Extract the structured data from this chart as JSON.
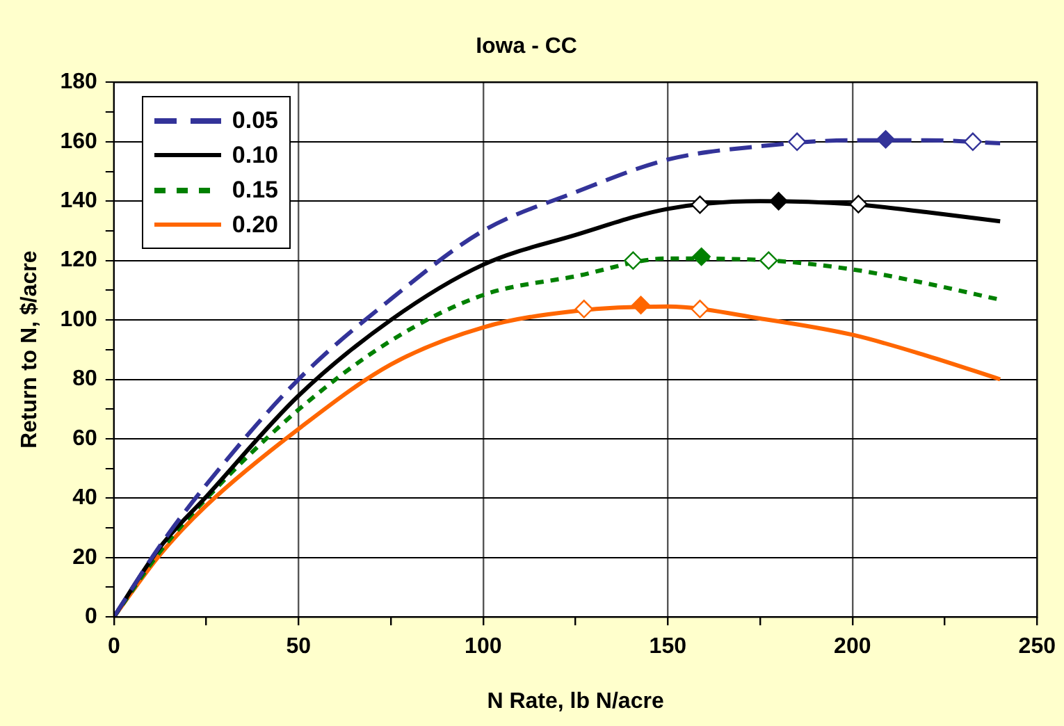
{
  "chart_data": {
    "type": "line",
    "title": "Iowa - CC",
    "xlabel": "N Rate, lb N/acre",
    "ylabel": "Return to N, $/acre",
    "xlim": [
      0,
      250
    ],
    "xticks": [
      0,
      {
        "value": 25,
        "label": null
      },
      50,
      {
        "value": 75,
        "label": null
      },
      100,
      {
        "value": 125,
        "label": null
      },
      150,
      {
        "value": 175,
        "label": null
      },
      200,
      {
        "value": 225,
        "label": null
      },
      250
    ],
    "ylim": [
      0,
      180
    ],
    "yticks": [
      0,
      {
        "value": 10,
        "label": null
      },
      20,
      {
        "value": 30,
        "label": null
      },
      40,
      {
        "value": 50,
        "label": null
      },
      60,
      {
        "value": 70,
        "label": null
      },
      80,
      {
        "value": 90,
        "label": null
      },
      100,
      {
        "value": 110,
        "label": null
      },
      120,
      {
        "value": 130,
        "label": null
      },
      140,
      {
        "value": 150,
        "label": null
      },
      160,
      {
        "value": 170,
        "label": null
      },
      180
    ],
    "grid": true,
    "legend": "top left",
    "marker": "none",
    "x": [
      0,
      12.5,
      25,
      50,
      75,
      100,
      125,
      150,
      175,
      200,
      220,
      240
    ],
    "series": [
      {
        "name": "0.05",
        "color": "#333399",
        "line_style": "dashed",
        "values": [
          0,
          24,
          44.5,
          80,
          107,
          130,
          143,
          154,
          158.5,
          160.5,
          160.5,
          159.5
        ]
      },
      {
        "name": "0.10",
        "color": "#000000",
        "line_style": "solid",
        "values": [
          0,
          23.5,
          40.5,
          74.5,
          100,
          118.6,
          128.6,
          137.4,
          140,
          139,
          136.3,
          133.2
        ]
      },
      {
        "name": "0.15",
        "color": "#008000",
        "line_style": "dotted",
        "values": [
          0,
          22,
          39.8,
          69.8,
          93,
          108.4,
          114.7,
          120.7,
          120.2,
          117,
          112.3,
          106.8
        ]
      },
      {
        "name": "0.20",
        "color": "#ff6600",
        "line_style": "solid",
        "values": [
          0,
          21,
          37.5,
          63.3,
          85,
          97.5,
          103,
          104.5,
          100.5,
          95,
          88,
          80
        ]
      },
      {
        "type": "scatter",
        "marker": "diamond",
        "color": "#333399",
        "colors": [
          "#ffffff",
          "#333399",
          "#ffffff"
        ],
        "x": [
          185,
          209,
          232.6
        ],
        "values": [
          160,
          160.8,
          160
        ]
      },
      {
        "type": "scatter",
        "marker": "diamond",
        "color": "#000000",
        "colors": [
          "#ffffff",
          "#000000",
          "#ffffff"
        ],
        "x": [
          158.7,
          180,
          201.6
        ],
        "values": [
          138.8,
          140,
          139
        ]
      },
      {
        "type": "scatter",
        "marker": "diamond",
        "color": "#008000",
        "colors": [
          "#ffffff",
          "#008000",
          "#ffffff"
        ],
        "x": [
          140.6,
          159.1,
          177.3
        ],
        "values": [
          120,
          121.3,
          120
        ]
      },
      {
        "type": "scatter",
        "marker": "diamond",
        "color": "#ff6600",
        "colors": [
          "#ffffff",
          "#ff6600",
          "#ffffff"
        ],
        "x": [
          127.3,
          142.7,
          158.7
        ],
        "values": [
          103.7,
          105,
          103.7
        ]
      }
    ]
  }
}
